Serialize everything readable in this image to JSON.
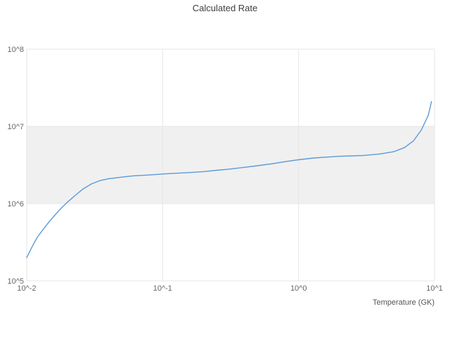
{
  "chart_data": {
    "type": "line",
    "title": "Calculated Rate",
    "xlabel": "Temperature (GK)",
    "ylabel": "",
    "x_scale": "log",
    "y_scale": "log",
    "xlog_range": [
      -2,
      1
    ],
    "ylog_range": [
      5,
      8
    ],
    "grid": true,
    "legend": false,
    "grid_color": "#e6e6e6",
    "line_color": "#5b9bd5",
    "tick_color": "#666666",
    "band": {
      "from": 1000000.0,
      "to": 10000000.0,
      "color": "#f0f0f0"
    },
    "xticks": [
      {
        "value": 0.01,
        "label": "10^-2"
      },
      {
        "value": 0.1,
        "label": "10^-1"
      },
      {
        "value": 1,
        "label": "10^0"
      },
      {
        "value": 10,
        "label": "10^1"
      }
    ],
    "yticks": [
      {
        "value": 100000.0,
        "label": "10^5"
      },
      {
        "value": 1000000.0,
        "label": "10^6"
      },
      {
        "value": 10000000.0,
        "label": "10^7"
      },
      {
        "value": 100000000.0,
        "label": "10^8"
      }
    ],
    "series": [
      {
        "name": "Calculated Rate",
        "x": [
          0.01,
          0.011,
          0.012,
          0.014,
          0.016,
          0.018,
          0.02,
          0.023,
          0.026,
          0.03,
          0.035,
          0.04,
          0.05,
          0.06,
          0.08,
          0.1,
          0.13,
          0.16,
          0.2,
          0.25,
          0.3,
          0.4,
          0.5,
          0.65,
          0.8,
          1.0,
          1.3,
          1.6,
          2.0,
          2.5,
          3.0,
          3.5,
          4.0,
          5.0,
          6.0,
          7.0,
          8.0,
          9.0,
          9.5
        ],
        "y": [
          200000.0,
          280000.0,
          370000.0,
          530000.0,
          700000.0,
          880000.0,
          1050000.0,
          1300000.0,
          1550000.0,
          1800000.0,
          2000000.0,
          2100000.0,
          2200000.0,
          2280000.0,
          2350000.0,
          2420000.0,
          2480000.0,
          2530000.0,
          2600000.0,
          2700000.0,
          2780000.0,
          2950000.0,
          3100000.0,
          3300000.0,
          3500000.0,
          3700000.0,
          3900000.0,
          4000000.0,
          4100000.0,
          4150000.0,
          4200000.0,
          4300000.0,
          4400000.0,
          4700000.0,
          5300000.0,
          6500000.0,
          9000000.0,
          14000000.0,
          21000000.0
        ]
      }
    ]
  }
}
